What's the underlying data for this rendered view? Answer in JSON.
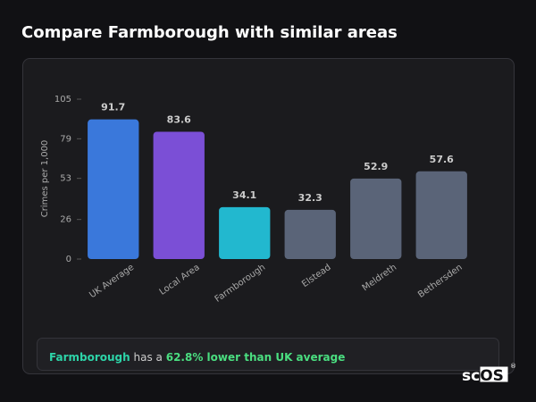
{
  "title": "Compare Farmborough with similar areas",
  "chart_data": {
    "type": "bar",
    "y_label": "Crimes per 1,000",
    "categories": [
      "UK Average",
      "Local Area",
      "Farmborough",
      "Elstead",
      "Meldreth",
      "Bethersden"
    ],
    "values": [
      91.7,
      83.6,
      34.1,
      32.3,
      52.9,
      57.6
    ],
    "colors": [
      "#3a78db",
      "#7b4fd6",
      "#22b8cf",
      "#5a6478",
      "#5a6478",
      "#5a6478"
    ],
    "ylim": [
      0,
      105
    ],
    "yticks": [
      0,
      26,
      53,
      79,
      105
    ],
    "grid": false
  },
  "footer": {
    "place": "Farmborough",
    "text": "has a",
    "highlight": "62.8% lower than UK average"
  },
  "logo": {
    "left": "sc",
    "right": "OS",
    "mark": "®"
  }
}
